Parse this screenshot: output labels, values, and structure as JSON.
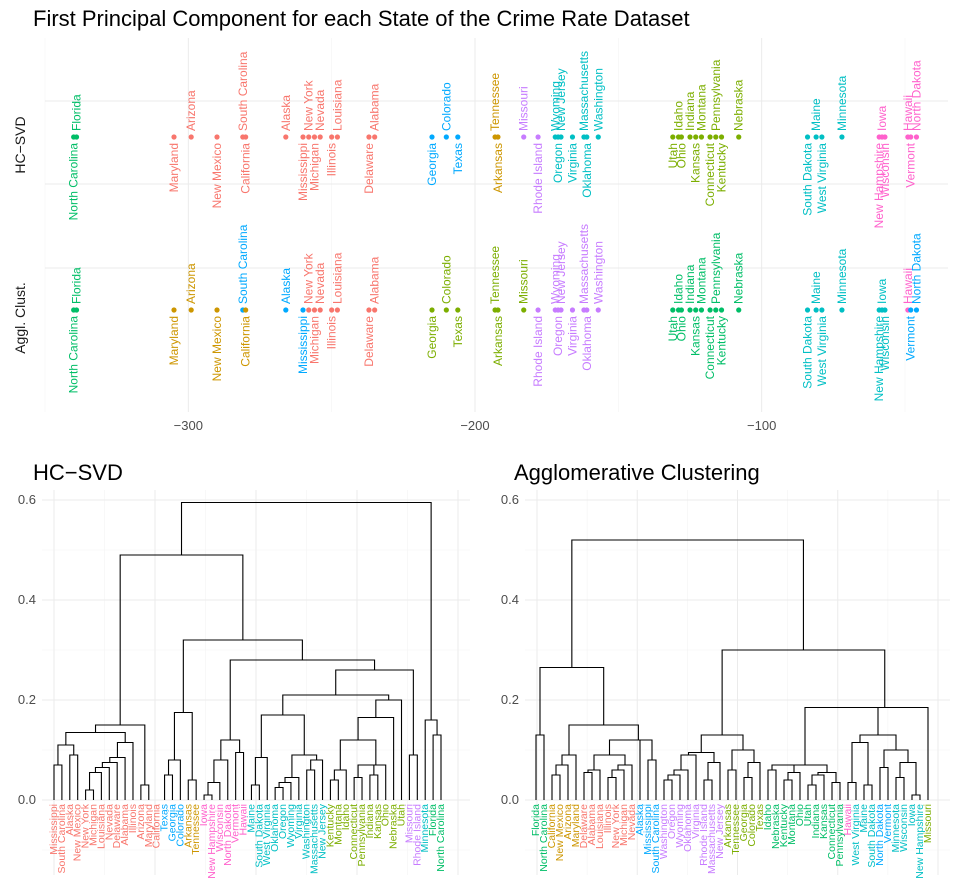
{
  "palette": {
    "c1": "#F8766D",
    "c2": "#CD9600",
    "c3": "#7CAE00",
    "c4": "#00BE67",
    "c5": "#00BFC4",
    "c6": "#00A9FF",
    "c7": "#C77CFF",
    "c8": "#FF61CC"
  },
  "chart_data": [
    {
      "type": "scatter",
      "title": "First Principal Component for each State of the Crime Rate Dataset",
      "xlabel": "",
      "ylabel": "",
      "xlim": [
        -350,
        -35
      ],
      "xticks": [
        -300,
        -200,
        -100
      ],
      "xtick_labels": [
        "−300",
        "−200",
        "−100"
      ],
      "grid": true,
      "rows": [
        "HC−SVD",
        "Aggl. Clust."
      ],
      "points": [
        {
          "state": "North Carolina",
          "x": -340,
          "hc": "c4",
          "ag": "c4"
        },
        {
          "state": "Florida",
          "x": -339,
          "hc": "c4",
          "ag": "c4"
        },
        {
          "state": "Maryland",
          "x": -305,
          "hc": "c1",
          "ag": "c2"
        },
        {
          "state": "Arizona",
          "x": -299,
          "hc": "c1",
          "ag": "c2"
        },
        {
          "state": "New Mexico",
          "x": -290,
          "hc": "c1",
          "ag": "c2"
        },
        {
          "state": "South Carolina",
          "x": -281,
          "hc": "c1",
          "ag": "c6"
        },
        {
          "state": "California",
          "x": -280,
          "hc": "c1",
          "ag": "c2"
        },
        {
          "state": "Alaska",
          "x": -266,
          "hc": "c1",
          "ag": "c6"
        },
        {
          "state": "Mississippi",
          "x": -260,
          "hc": "c1",
          "ag": "c6"
        },
        {
          "state": "New York",
          "x": -258,
          "hc": "c1",
          "ag": "c1"
        },
        {
          "state": "Michigan",
          "x": -256,
          "hc": "c1",
          "ag": "c1"
        },
        {
          "state": "Nevada",
          "x": -254,
          "hc": "c1",
          "ag": "c1"
        },
        {
          "state": "Illinois",
          "x": -250,
          "hc": "c1",
          "ag": "c1"
        },
        {
          "state": "Louisiana",
          "x": -248,
          "hc": "c1",
          "ag": "c1"
        },
        {
          "state": "Delaware",
          "x": -237,
          "hc": "c1",
          "ag": "c1"
        },
        {
          "state": "Alabama",
          "x": -235,
          "hc": "c1",
          "ag": "c1"
        },
        {
          "state": "Georgia",
          "x": -215,
          "hc": "c6",
          "ag": "c3"
        },
        {
          "state": "Colorado",
          "x": -210,
          "hc": "c6",
          "ag": "c3"
        },
        {
          "state": "Texas",
          "x": -206,
          "hc": "c6",
          "ag": "c3"
        },
        {
          "state": "Tennessee",
          "x": -193,
          "hc": "c2",
          "ag": "c3"
        },
        {
          "state": "Arkansas",
          "x": -192,
          "hc": "c2",
          "ag": "c3"
        },
        {
          "state": "Missouri",
          "x": -183,
          "hc": "c7",
          "ag": "c3"
        },
        {
          "state": "Rhode Island",
          "x": -178,
          "hc": "c7",
          "ag": "c7"
        },
        {
          "state": "Wyoming",
          "x": -172,
          "hc": "c5",
          "ag": "c7"
        },
        {
          "state": "Oregon",
          "x": -171,
          "hc": "c5",
          "ag": "c7"
        },
        {
          "state": "New Jersey",
          "x": -170,
          "hc": "c5",
          "ag": "c7"
        },
        {
          "state": "Virginia",
          "x": -166,
          "hc": "c5",
          "ag": "c7"
        },
        {
          "state": "Massachusetts",
          "x": -162,
          "hc": "c5",
          "ag": "c7"
        },
        {
          "state": "Oklahoma",
          "x": -161,
          "hc": "c5",
          "ag": "c7"
        },
        {
          "state": "Washington",
          "x": -157,
          "hc": "c5",
          "ag": "c7"
        },
        {
          "state": "Utah",
          "x": -131,
          "hc": "c3",
          "ag": "c4"
        },
        {
          "state": "Idaho",
          "x": -129,
          "hc": "c3",
          "ag": "c4"
        },
        {
          "state": "Ohio",
          "x": -128,
          "hc": "c3",
          "ag": "c4"
        },
        {
          "state": "Indiana",
          "x": -125,
          "hc": "c3",
          "ag": "c4"
        },
        {
          "state": "Kansas",
          "x": -123,
          "hc": "c3",
          "ag": "c4"
        },
        {
          "state": "Montana",
          "x": -121,
          "hc": "c3",
          "ag": "c4"
        },
        {
          "state": "Connecticut",
          "x": -118,
          "hc": "c3",
          "ag": "c4"
        },
        {
          "state": "Pennsylvania",
          "x": -116,
          "hc": "c3",
          "ag": "c4"
        },
        {
          "state": "Kentucky",
          "x": -114,
          "hc": "c3",
          "ag": "c4"
        },
        {
          "state": "Nebraska",
          "x": -108,
          "hc": "c3",
          "ag": "c4"
        },
        {
          "state": "South Dakota",
          "x": -84,
          "hc": "c5",
          "ag": "c5"
        },
        {
          "state": "Maine",
          "x": -81,
          "hc": "c5",
          "ag": "c5"
        },
        {
          "state": "West Virginia",
          "x": -79,
          "hc": "c5",
          "ag": "c5"
        },
        {
          "state": "Minnesota",
          "x": -72,
          "hc": "c5",
          "ag": "c5"
        },
        {
          "state": "New Hampshire",
          "x": -59,
          "hc": "c8",
          "ag": "c5"
        },
        {
          "state": "Iowa",
          "x": -58,
          "hc": "c8",
          "ag": "c5"
        },
        {
          "state": "Wisconsin",
          "x": -57,
          "hc": "c8",
          "ag": "c5"
        },
        {
          "state": "Hawaii",
          "x": -49,
          "hc": "c8",
          "ag": "c8"
        },
        {
          "state": "Vermont",
          "x": -48,
          "hc": "c8",
          "ag": "c6"
        },
        {
          "state": "North Dakota",
          "x": -46,
          "hc": "c8",
          "ag": "c6"
        }
      ]
    },
    {
      "type": "dendrogram",
      "title": "HC−SVD",
      "ylim": [
        -0.15,
        0.62
      ],
      "yticks": [
        0.0,
        0.2,
        0.4,
        0.6
      ],
      "ytick_labels": [
        "0.0",
        "0.2",
        "0.4",
        "0.6"
      ],
      "tree": [
        "Mississippi",
        "South Carolina",
        "Alaska",
        "New Mexico",
        "New York",
        "Michigan",
        "Louisiana",
        "Nevada",
        "Delaware",
        "Alabama",
        "Illinois",
        "Arizona",
        "Maryland",
        "California",
        "Texas",
        "Georgia",
        "Colorado",
        "Arkansas",
        "Tennessee",
        "Iowa",
        "New Hampshire",
        "Wisconsin",
        "North Dakota",
        "Vermont",
        "Hawaii",
        "Maine",
        "South Dakota",
        "West Virginia",
        "Oklahoma",
        "Oregon",
        "Wyoming",
        "Virginia",
        "Washington",
        "Massachusetts",
        "New Jersey",
        "Kentucky",
        "Montana",
        "Idaho",
        "Connecticut",
        "Pennsylvania",
        "Indiana",
        "Kansas",
        "Ohio",
        "Nebraska",
        "Utah",
        "Missouri",
        "Rhode Island",
        "Minnesota",
        "Florida",
        "North Carolina"
      ],
      "leaf_colors": [
        "c1",
        "c1",
        "c1",
        "c1",
        "c1",
        "c1",
        "c1",
        "c1",
        "c1",
        "c1",
        "c1",
        "c1",
        "c1",
        "c1",
        "c6",
        "c6",
        "c6",
        "c2",
        "c2",
        "c8",
        "c8",
        "c8",
        "c8",
        "c8",
        "c8",
        "c5",
        "c5",
        "c5",
        "c5",
        "c5",
        "c5",
        "c5",
        "c5",
        "c5",
        "c5",
        "c3",
        "c3",
        "c3",
        "c3",
        "c3",
        "c3",
        "c3",
        "c3",
        "c3",
        "c3",
        "c7",
        "c7",
        "c5",
        "c4",
        "c4"
      ],
      "merges": [
        [
          0,
          1,
          0.07
        ],
        [
          2,
          3,
          0.09
        ],
        [
          52,
          50,
          0.11
        ],
        [
          4,
          5,
          0.02
        ],
        [
          54,
          6,
          0.055
        ],
        [
          55,
          7,
          0.065
        ],
        [
          56,
          8,
          0.075
        ],
        [
          57,
          9,
          0.085
        ],
        [
          58,
          10,
          0.115
        ],
        [
          53,
          59,
          0.135
        ],
        [
          11,
          12,
          0.03
        ],
        [
          60,
          61,
          0.15
        ],
        [
          14,
          15,
          0.05
        ],
        [
          62,
          16,
          0.08
        ],
        [
          17,
          18,
          0.04
        ],
        [
          63,
          64,
          0.175
        ],
        [
          19,
          20,
          0.01
        ],
        [
          66,
          21,
          0.035
        ],
        [
          67,
          22,
          0.08
        ],
        [
          23,
          24,
          0.095
        ],
        [
          68,
          69,
          0.12
        ],
        [
          65,
          70,
          0.32
        ],
        [
          25,
          26,
          0.03
        ],
        [
          72,
          27,
          0.04
        ],
        [
          73,
          28,
          0.085
        ],
        [
          29,
          30,
          0.025
        ],
        [
          75,
          31,
          0.035
        ],
        [
          76,
          32,
          0.05
        ],
        [
          33,
          34,
          0.06
        ],
        [
          77,
          78,
          0.075
        ],
        [
          74,
          79,
          0.16
        ],
        [
          35,
          36,
          0.045
        ],
        [
          80,
          37,
          0.065
        ],
        [
          38,
          39,
          0.04
        ],
        [
          82,
          40,
          0.055
        ],
        [
          41,
          42,
          0.05
        ],
        [
          83,
          84,
          0.07
        ],
        [
          81,
          85,
          0.12
        ],
        [
          86,
          43,
          0.165
        ],
        [
          87,
          44,
          0.18
        ],
        [
          88,
          79,
          0.0
        ],
        [
          89,
          90,
          0.0
        ],
        [
          91,
          92,
          0.0
        ],
        [
          93,
          94,
          0.0
        ],
        [
          95,
          96,
          0.0
        ],
        [
          97,
          98,
          0.0
        ],
        [
          99,
          100,
          0.0
        ],
        [
          101,
          102,
          0.0
        ]
      ]
    },
    {
      "type": "dendrogram",
      "title": "Agglomerative Clustering",
      "ylim": [
        -0.15,
        0.62
      ],
      "yticks": [
        0.0,
        0.2,
        0.4,
        0.6
      ],
      "ytick_labels": [
        "0.0",
        "0.2",
        "0.4",
        "0.6"
      ],
      "tree": [
        "Florida",
        "North Carolina",
        "California",
        "New Mexico",
        "Arizona",
        "Maryland",
        "Delaware",
        "Alabama",
        "Louisiana",
        "Illinois",
        "New York",
        "Michigan",
        "Nevada",
        "Alaska",
        "Mississippi",
        "South Carolina",
        "Washington",
        "Oregon",
        "Wyoming",
        "Oklahoma",
        "Virginia",
        "Rhode Island",
        "Massachusetts",
        "New Jersey",
        "Arkansas",
        "Tennessee",
        "Georgia",
        "Colorado",
        "Texas",
        "Idaho",
        "Nebraska",
        "Kentucky",
        "Montana",
        "Ohio",
        "Utah",
        "Indiana",
        "Kansas",
        "Connecticut",
        "Pennsylvania",
        "Hawaii",
        "West Virginia",
        "Maine",
        "South Dakota",
        "North Dakota",
        "Vermont",
        "Minnesota",
        "Wisconsin",
        "Iowa",
        "New Hampshire",
        "Missouri"
      ],
      "leaf_colors": [
        "c4",
        "c4",
        "c2",
        "c2",
        "c2",
        "c2",
        "c1",
        "c1",
        "c1",
        "c1",
        "c1",
        "c1",
        "c1",
        "c6",
        "c6",
        "c6",
        "c7",
        "c7",
        "c7",
        "c7",
        "c7",
        "c7",
        "c7",
        "c7",
        "c3",
        "c3",
        "c3",
        "c3",
        "c3",
        "c4",
        "c4",
        "c4",
        "c4",
        "c4",
        "c4",
        "c4",
        "c4",
        "c4",
        "c4",
        "c8",
        "c5",
        "c5",
        "c5",
        "c6",
        "c6",
        "c5",
        "c5",
        "c5",
        "c5",
        "c3"
      ]
    }
  ]
}
